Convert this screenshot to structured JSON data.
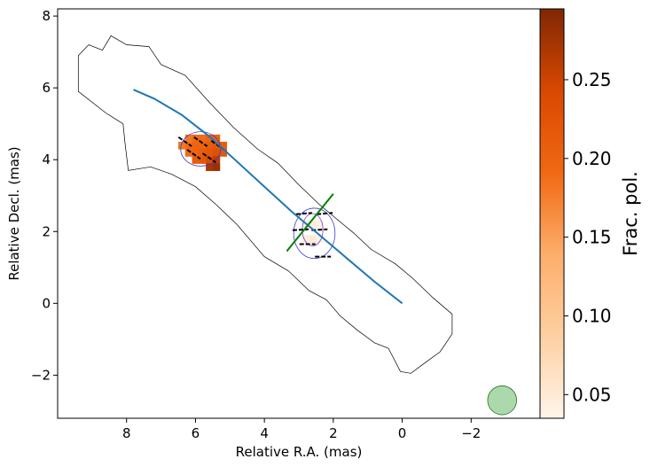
{
  "chart_data": {
    "type": "scatter",
    "title": "",
    "xlabel": "Relative R.A. (mas)",
    "ylabel": "Relative Decl. (mas)",
    "xlim": [
      10.0,
      -4.0
    ],
    "ylim": [
      -3.2,
      8.2
    ],
    "x_axis_inverted": true,
    "x_ticks": [
      8,
      6,
      4,
      2,
      0,
      -2
    ],
    "x_tick_labels": [
      "8",
      "6",
      "4",
      "2",
      "0",
      "−2"
    ],
    "y_ticks": [
      -2,
      0,
      2,
      4,
      6,
      8
    ],
    "y_tick_labels": [
      "−2",
      "0",
      "2",
      "4",
      "6",
      "8"
    ],
    "grid": false,
    "colorbar": {
      "label": "Frac. pol.",
      "cmap": "Oranges",
      "range": [
        0.035,
        0.295
      ],
      "ticks": [
        0.05,
        0.1,
        0.15,
        0.2,
        0.25
      ],
      "tick_labels": [
        "0.05",
        "0.10",
        "0.15",
        "0.20",
        "0.25"
      ]
    },
    "ridge_line": {
      "color": "#1f77b4",
      "x": [
        0.0,
        0.8,
        1.6,
        2.4,
        3.2,
        4.0,
        4.8,
        5.6,
        6.4,
        7.2,
        7.8
      ],
      "y": [
        0.0,
        0.6,
        1.25,
        1.9,
        2.55,
        3.25,
        3.95,
        4.65,
        5.25,
        5.7,
        5.95
      ]
    },
    "outer_contour": {
      "color": "#000000",
      "x": [
        9.4,
        9.1,
        8.7,
        8.45,
        8.0,
        7.35,
        7.0,
        6.3,
        5.6,
        4.9,
        4.2,
        3.6,
        3.0,
        2.4,
        1.9,
        1.4,
        0.9,
        0.2,
        -0.3,
        -0.9,
        -1.45,
        -1.45,
        -1.1,
        -0.6,
        -0.25,
        0.05,
        0.4,
        0.8,
        1.3,
        1.8,
        2.2,
        2.7,
        3.3,
        4.0,
        4.8,
        5.4,
        6.0,
        6.7,
        7.3,
        7.95,
        8.05,
        8.1,
        8.6,
        9.4,
        9.4
      ],
      "y": [
        6.9,
        7.2,
        7.05,
        7.45,
        7.2,
        7.15,
        6.65,
        6.35,
        5.6,
        4.9,
        4.3,
        3.9,
        3.3,
        2.75,
        2.35,
        1.95,
        1.5,
        1.1,
        0.7,
        0.15,
        -0.3,
        -0.85,
        -1.35,
        -1.7,
        -1.95,
        -1.9,
        -1.25,
        -1.1,
        -0.75,
        -0.35,
        0.1,
        0.35,
        0.9,
        1.3,
        2.2,
        2.75,
        3.25,
        3.6,
        3.8,
        3.7,
        4.5,
        5.0,
        5.3,
        5.9,
        6.9
      ]
    },
    "knots": [
      {
        "name": "",
        "ellipse": {
          "cx": 5.85,
          "cy": 4.3,
          "rx": 0.58,
          "ry": 0.48
        },
        "pol_cells": [
          {
            "x": 6.2,
            "y": 4.4,
            "v": 0.19
          },
          {
            "x": 6.0,
            "y": 4.4,
            "v": 0.2
          },
          {
            "x": 5.8,
            "y": 4.4,
            "v": 0.2
          },
          {
            "x": 5.6,
            "y": 4.4,
            "v": 0.21
          },
          {
            "x": 5.4,
            "y": 4.4,
            "v": 0.22
          },
          {
            "x": 6.2,
            "y": 4.2,
            "v": 0.19
          },
          {
            "x": 6.0,
            "y": 4.2,
            "v": 0.2
          },
          {
            "x": 5.8,
            "y": 4.2,
            "v": 0.21
          },
          {
            "x": 5.6,
            "y": 4.2,
            "v": 0.22
          },
          {
            "x": 5.4,
            "y": 4.2,
            "v": 0.23
          },
          {
            "x": 6.2,
            "y": 4.6,
            "v": 0.18
          },
          {
            "x": 6.0,
            "y": 4.6,
            "v": 0.19
          },
          {
            "x": 5.8,
            "y": 4.6,
            "v": 0.19
          },
          {
            "x": 5.6,
            "y": 4.6,
            "v": 0.2
          },
          {
            "x": 5.4,
            "y": 4.6,
            "v": 0.2
          },
          {
            "x": 5.2,
            "y": 4.2,
            "v": 0.22
          },
          {
            "x": 5.6,
            "y": 4.0,
            "v": 0.24
          },
          {
            "x": 5.4,
            "y": 4.0,
            "v": 0.26
          },
          {
            "x": 5.6,
            "y": 3.8,
            "v": 0.27
          },
          {
            "x": 5.4,
            "y": 3.8,
            "v": 0.28
          },
          {
            "x": 5.8,
            "y": 4.0,
            "v": 0.22
          },
          {
            "x": 6.0,
            "y": 4.0,
            "v": 0.21
          },
          {
            "x": 5.2,
            "y": 4.4,
            "v": 0.21
          },
          {
            "x": 6.4,
            "y": 4.4,
            "v": 0.18
          }
        ],
        "evpa_bars": [
          {
            "x": 6.3,
            "y": 4.5,
            "angle": -35
          },
          {
            "x": 5.85,
            "y": 4.5,
            "angle": -35
          },
          {
            "x": 5.35,
            "y": 4.4,
            "angle": -35
          },
          {
            "x": 6.05,
            "y": 4.15,
            "angle": -35
          },
          {
            "x": 5.6,
            "y": 4.05,
            "angle": -35
          }
        ]
      },
      {
        "name": "",
        "ellipse": {
          "cx": 2.55,
          "cy": 1.95,
          "rx": 0.6,
          "ry": 0.7
        },
        "inner_ellipse": {
          "cx": 2.6,
          "cy": 2.05,
          "rx": 0.3,
          "ry": 0.45
        },
        "pol_cells": [
          {
            "x": 2.8,
            "y": 2.2,
            "v": 0.04
          },
          {
            "x": 2.6,
            "y": 2.2,
            "v": 0.045
          },
          {
            "x": 2.4,
            "y": 2.2,
            "v": 0.04
          },
          {
            "x": 2.8,
            "y": 1.8,
            "v": 0.045
          },
          {
            "x": 2.6,
            "y": 1.8,
            "v": 0.05
          },
          {
            "x": 2.4,
            "y": 1.8,
            "v": 0.04
          }
        ],
        "evpa_bars": [
          {
            "x": 2.85,
            "y": 2.5,
            "angle": 5
          },
          {
            "x": 2.25,
            "y": 2.5,
            "angle": 5
          },
          {
            "x": 2.95,
            "y": 2.05,
            "angle": 3
          },
          {
            "x": 2.4,
            "y": 2.05,
            "angle": 3
          },
          {
            "x": 2.75,
            "y": 1.65,
            "angle": 0
          },
          {
            "x": 2.3,
            "y": 1.3,
            "angle": 0
          }
        ]
      }
    ],
    "green_segment": {
      "color": "#008000",
      "x": [
        3.35,
        2.0
      ],
      "y": [
        1.45,
        3.05
      ]
    },
    "beam": {
      "x": -2.9,
      "y": -2.7,
      "radius": 0.42,
      "color": "#2ca02c"
    }
  }
}
